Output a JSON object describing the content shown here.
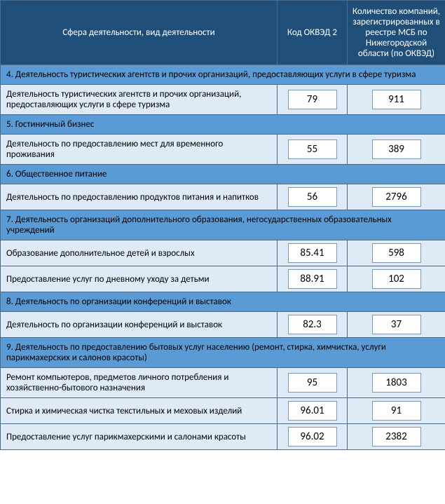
{
  "colors": {
    "header_bg": "#1f4e79",
    "section_bg": "#5b9bd5",
    "row_bg": "#deeaf6",
    "border": "#4a6a8a",
    "valbox_border": "#7f98b3",
    "text_light": "#ffffff",
    "text_dark": "#000000"
  },
  "header": {
    "col1": "Сфера деятельности, вид деятельности",
    "col2": "Код ОКВЭД 2",
    "col3": "Количество компаний, зарегистрированных в реестре МСБ по Нижегородской области (по ОКВЭД)"
  },
  "rows": [
    {
      "type": "section",
      "text": "4. Деятельность туристических агентств и прочих организаций, предоставляющих услуги в сфере туризма"
    },
    {
      "type": "data",
      "desc": "Деятельность туристических агентств и прочих организаций, предоставляющих услуги в сфере туризма",
      "code": "79",
      "count": "911"
    },
    {
      "type": "section",
      "text": "5. Гостиничный бизнес"
    },
    {
      "type": "data",
      "desc": "Деятельность по предоставлению мест для временного проживания",
      "code": "55",
      "count": "389"
    },
    {
      "type": "section",
      "text": "6. Общественное питание"
    },
    {
      "type": "data",
      "desc": "Деятельность по предоставлению продуктов питания и напитков",
      "code": "56",
      "count": "2796"
    },
    {
      "type": "section",
      "text": "7. Деятельность организаций дополнительного образования, негосударственных образовательных учреждений"
    },
    {
      "type": "data",
      "desc": "Образование дополнительное детей и взрослых",
      "code": "85.41",
      "count": "598"
    },
    {
      "type": "data",
      "desc": "Предоставление услуг по дневному уходу за детьми",
      "code": "88.91",
      "count": "102"
    },
    {
      "type": "section",
      "text": "8. Деятельность по организации конференций и выставок"
    },
    {
      "type": "data",
      "desc": "Деятельность по организации конференций и выставок",
      "code": "82.3",
      "count": "37"
    },
    {
      "type": "section",
      "text": "9. Деятельность по предоставлению бытовых услуг населению (ремонт, стирка, химчистка, услуги парикмахерских и салонов красоты)"
    },
    {
      "type": "data",
      "desc": "Ремонт компьютеров, предметов личного потребления и хозяйственно-бытового назначения",
      "code": "95",
      "count": "1803"
    },
    {
      "type": "data",
      "desc": "Стирка и химическая чистка текстильных и меховых изделий",
      "code": "96.01",
      "count": "91"
    },
    {
      "type": "data",
      "desc": "Предоставление услуг парикмахерскими и салонами красоты",
      "code": "96.02",
      "count": "2382"
    }
  ]
}
